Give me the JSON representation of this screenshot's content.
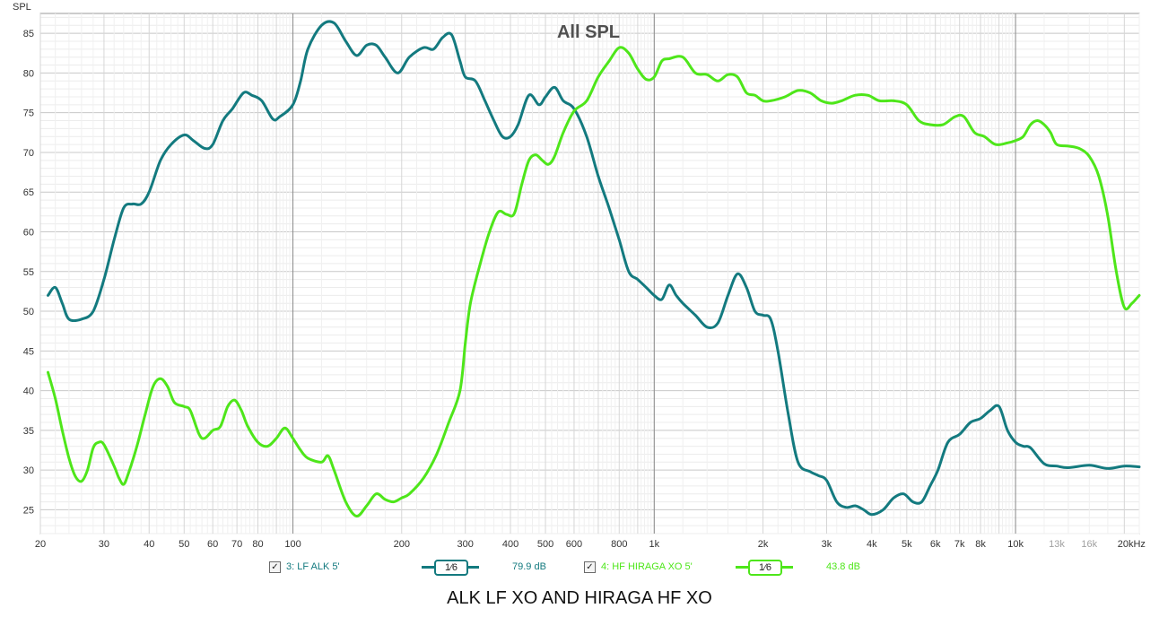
{
  "chart_data": {
    "type": "line",
    "title": "All SPL",
    "ylabel": "SPL",
    "xscale": "log",
    "xlim": [
      20,
      22000
    ],
    "ylim": [
      22,
      87.5
    ],
    "yticks": [
      25,
      30,
      35,
      40,
      45,
      50,
      55,
      60,
      65,
      70,
      75,
      80,
      85
    ],
    "xticks": [
      {
        "value": 20,
        "label": "20"
      },
      {
        "value": 30,
        "label": "30"
      },
      {
        "value": 40,
        "label": "40"
      },
      {
        "value": 50,
        "label": "50"
      },
      {
        "value": 60,
        "label": "60"
      },
      {
        "value": 70,
        "label": "70"
      },
      {
        "value": 80,
        "label": "80"
      },
      {
        "value": 100,
        "label": "100"
      },
      {
        "value": 200,
        "label": "200"
      },
      {
        "value": 300,
        "label": "300"
      },
      {
        "value": 400,
        "label": "400"
      },
      {
        "value": 500,
        "label": "500"
      },
      {
        "value": 600,
        "label": "600"
      },
      {
        "value": 800,
        "label": "800"
      },
      {
        "value": 1000,
        "label": "1k"
      },
      {
        "value": 2000,
        "label": "2k"
      },
      {
        "value": 3000,
        "label": "3k"
      },
      {
        "value": 4000,
        "label": "4k"
      },
      {
        "value": 5000,
        "label": "5k"
      },
      {
        "value": 6000,
        "label": "6k"
      },
      {
        "value": 7000,
        "label": "7k"
      },
      {
        "value": 8000,
        "label": "8k"
      },
      {
        "value": 10000,
        "label": "10k"
      },
      {
        "value": 13000,
        "label": "13k",
        "faint": true
      },
      {
        "value": 16000,
        "label": "16k",
        "faint": true
      },
      {
        "value": 20000,
        "label": "20kHz"
      }
    ],
    "grid": true,
    "legend_position": "bottom",
    "series": [
      {
        "name": "3: LF ALK 5'",
        "color": "#137a7f",
        "points": [
          [
            21,
            52
          ],
          [
            22,
            53
          ],
          [
            23,
            51
          ],
          [
            24,
            49
          ],
          [
            26,
            49
          ],
          [
            28,
            50
          ],
          [
            30,
            54
          ],
          [
            32,
            59
          ],
          [
            34,
            63
          ],
          [
            36,
            63.5
          ],
          [
            38,
            63.5
          ],
          [
            40,
            65
          ],
          [
            43,
            69
          ],
          [
            46,
            71
          ],
          [
            50,
            72.2
          ],
          [
            53,
            71.5
          ],
          [
            57,
            70.5
          ],
          [
            60,
            71
          ],
          [
            64,
            74
          ],
          [
            68,
            75.5
          ],
          [
            73,
            77.5
          ],
          [
            77,
            77.2
          ],
          [
            82,
            76.5
          ],
          [
            88,
            74.2
          ],
          [
            92,
            74.5
          ],
          [
            100,
            76
          ],
          [
            105,
            79
          ],
          [
            110,
            83
          ],
          [
            120,
            86
          ],
          [
            130,
            86.3
          ],
          [
            140,
            84
          ],
          [
            150,
            82.2
          ],
          [
            160,
            83.5
          ],
          [
            170,
            83.5
          ],
          [
            180,
            82
          ],
          [
            195,
            80
          ],
          [
            210,
            82
          ],
          [
            230,
            83.2
          ],
          [
            245,
            83
          ],
          [
            260,
            84.5
          ],
          [
            275,
            84.8
          ],
          [
            290,
            81.5
          ],
          [
            300,
            79.5
          ],
          [
            320,
            79
          ],
          [
            340,
            76.5
          ],
          [
            360,
            74
          ],
          [
            380,
            72
          ],
          [
            400,
            72
          ],
          [
            420,
            73.5
          ],
          [
            450,
            77.2
          ],
          [
            480,
            76
          ],
          [
            500,
            77
          ],
          [
            530,
            78.2
          ],
          [
            560,
            76.5
          ],
          [
            600,
            75.5
          ],
          [
            650,
            72
          ],
          [
            700,
            67
          ],
          [
            750,
            63
          ],
          [
            800,
            59
          ],
          [
            850,
            55
          ],
          [
            900,
            54
          ],
          [
            950,
            53
          ],
          [
            1000,
            52
          ],
          [
            1050,
            51.5
          ],
          [
            1100,
            53.3
          ],
          [
            1150,
            52
          ],
          [
            1200,
            51
          ],
          [
            1300,
            49.5
          ],
          [
            1400,
            48
          ],
          [
            1500,
            48.5
          ],
          [
            1600,
            52
          ],
          [
            1700,
            54.7
          ],
          [
            1800,
            53
          ],
          [
            1900,
            50
          ],
          [
            2000,
            49.5
          ],
          [
            2100,
            49
          ],
          [
            2200,
            45
          ],
          [
            2350,
            37
          ],
          [
            2500,
            31
          ],
          [
            2700,
            29.8
          ],
          [
            2850,
            29.3
          ],
          [
            3000,
            28.7
          ],
          [
            3200,
            26
          ],
          [
            3400,
            25.3
          ],
          [
            3600,
            25.5
          ],
          [
            3800,
            25
          ],
          [
            4000,
            24.4
          ],
          [
            4300,
            25
          ],
          [
            4600,
            26.5
          ],
          [
            4900,
            27
          ],
          [
            5200,
            26
          ],
          [
            5500,
            26
          ],
          [
            5800,
            28
          ],
          [
            6100,
            30
          ],
          [
            6500,
            33.5
          ],
          [
            7000,
            34.5
          ],
          [
            7500,
            36
          ],
          [
            8000,
            36.5
          ],
          [
            8500,
            37.5
          ],
          [
            9000,
            38
          ],
          [
            9500,
            35
          ],
          [
            10000,
            33.5
          ],
          [
            10500,
            33
          ],
          [
            11000,
            32.8
          ],
          [
            12000,
            30.8
          ],
          [
            13000,
            30.5
          ],
          [
            14000,
            30.3
          ],
          [
            16000,
            30.6
          ],
          [
            18000,
            30.2
          ],
          [
            20000,
            30.5
          ],
          [
            22000,
            30.4
          ]
        ]
      },
      {
        "name": "4: HF HIRAGA XO 5'",
        "color": "#4ee61a",
        "points": [
          [
            21,
            42.3
          ],
          [
            22,
            39
          ],
          [
            23,
            35
          ],
          [
            24,
            31.5
          ],
          [
            25,
            29.2
          ],
          [
            26,
            28.6
          ],
          [
            27,
            30
          ],
          [
            28,
            32.8
          ],
          [
            29,
            33.5
          ],
          [
            30,
            33.2
          ],
          [
            32,
            30.5
          ],
          [
            33,
            29
          ],
          [
            34,
            28.2
          ],
          [
            35,
            29.5
          ],
          [
            37,
            33
          ],
          [
            39,
            37
          ],
          [
            41,
            40.5
          ],
          [
            43,
            41.5
          ],
          [
            45,
            40.5
          ],
          [
            47,
            38.5
          ],
          [
            50,
            38
          ],
          [
            52,
            37.5
          ],
          [
            55,
            34.5
          ],
          [
            57,
            34
          ],
          [
            60,
            35
          ],
          [
            63,
            35.5
          ],
          [
            66,
            38
          ],
          [
            69,
            38.8
          ],
          [
            72,
            37.5
          ],
          [
            75,
            35.5
          ],
          [
            80,
            33.5
          ],
          [
            85,
            33
          ],
          [
            90,
            34
          ],
          [
            95,
            35.3
          ],
          [
            100,
            34
          ],
          [
            105,
            32.5
          ],
          [
            110,
            31.5
          ],
          [
            120,
            31
          ],
          [
            125,
            31.8
          ],
          [
            130,
            30
          ],
          [
            140,
            26
          ],
          [
            150,
            24.2
          ],
          [
            160,
            25.5
          ],
          [
            170,
            27
          ],
          [
            180,
            26.3
          ],
          [
            190,
            26
          ],
          [
            200,
            26.5
          ],
          [
            210,
            27
          ],
          [
            230,
            29
          ],
          [
            250,
            32
          ],
          [
            270,
            36
          ],
          [
            290,
            40
          ],
          [
            300,
            46
          ],
          [
            310,
            51
          ],
          [
            330,
            56
          ],
          [
            350,
            60
          ],
          [
            370,
            62.5
          ],
          [
            390,
            62.2
          ],
          [
            410,
            62.3
          ],
          [
            430,
            66
          ],
          [
            450,
            69
          ],
          [
            470,
            69.7
          ],
          [
            490,
            69
          ],
          [
            510,
            68.5
          ],
          [
            530,
            69.5
          ],
          [
            560,
            72.5
          ],
          [
            600,
            75.2
          ],
          [
            650,
            76.5
          ],
          [
            700,
            79.5
          ],
          [
            750,
            81.5
          ],
          [
            800,
            83.2
          ],
          [
            850,
            82.5
          ],
          [
            900,
            80.5
          ],
          [
            950,
            79.2
          ],
          [
            1000,
            79.5
          ],
          [
            1050,
            81.5
          ],
          [
            1100,
            81.8
          ],
          [
            1200,
            82
          ],
          [
            1300,
            80
          ],
          [
            1400,
            79.8
          ],
          [
            1500,
            79
          ],
          [
            1600,
            79.8
          ],
          [
            1700,
            79.5
          ],
          [
            1800,
            77.5
          ],
          [
            1900,
            77.2
          ],
          [
            2000,
            76.5
          ],
          [
            2100,
            76.5
          ],
          [
            2300,
            77
          ],
          [
            2500,
            77.8
          ],
          [
            2700,
            77.5
          ],
          [
            2900,
            76.5
          ],
          [
            3100,
            76.2
          ],
          [
            3300,
            76.5
          ],
          [
            3600,
            77.2
          ],
          [
            3900,
            77.2
          ],
          [
            4200,
            76.5
          ],
          [
            4600,
            76.5
          ],
          [
            5000,
            76
          ],
          [
            5400,
            74
          ],
          [
            5800,
            73.5
          ],
          [
            6300,
            73.5
          ],
          [
            6800,
            74.5
          ],
          [
            7200,
            74.5
          ],
          [
            7700,
            72.5
          ],
          [
            8200,
            72
          ],
          [
            8800,
            71
          ],
          [
            9500,
            71.2
          ],
          [
            10000,
            71.5
          ],
          [
            10500,
            72
          ],
          [
            11000,
            73.5
          ],
          [
            11500,
            74
          ],
          [
            12000,
            73.5
          ],
          [
            12500,
            72.5
          ],
          [
            13000,
            71
          ],
          [
            14000,
            70.8
          ],
          [
            15000,
            70.5
          ],
          [
            16000,
            69.5
          ],
          [
            17000,
            67
          ],
          [
            18000,
            62
          ],
          [
            19000,
            55
          ],
          [
            20000,
            50.5
          ],
          [
            21000,
            51
          ],
          [
            22000,
            52
          ]
        ]
      }
    ]
  },
  "legend": [
    {
      "label": "3: LF ALK 5'",
      "checkbox": "☑",
      "smoothing": "1⁄6",
      "level": "79.9 dB",
      "color": "#137a7f"
    },
    {
      "label": "4: HF HIRAGA XO 5'",
      "checkbox": "☑",
      "smoothing": "1⁄6",
      "level": "43.8 dB",
      "color": "#4ee61a"
    }
  ],
  "footer_title": "ALK LF XO AND HIRAGA HF XO"
}
